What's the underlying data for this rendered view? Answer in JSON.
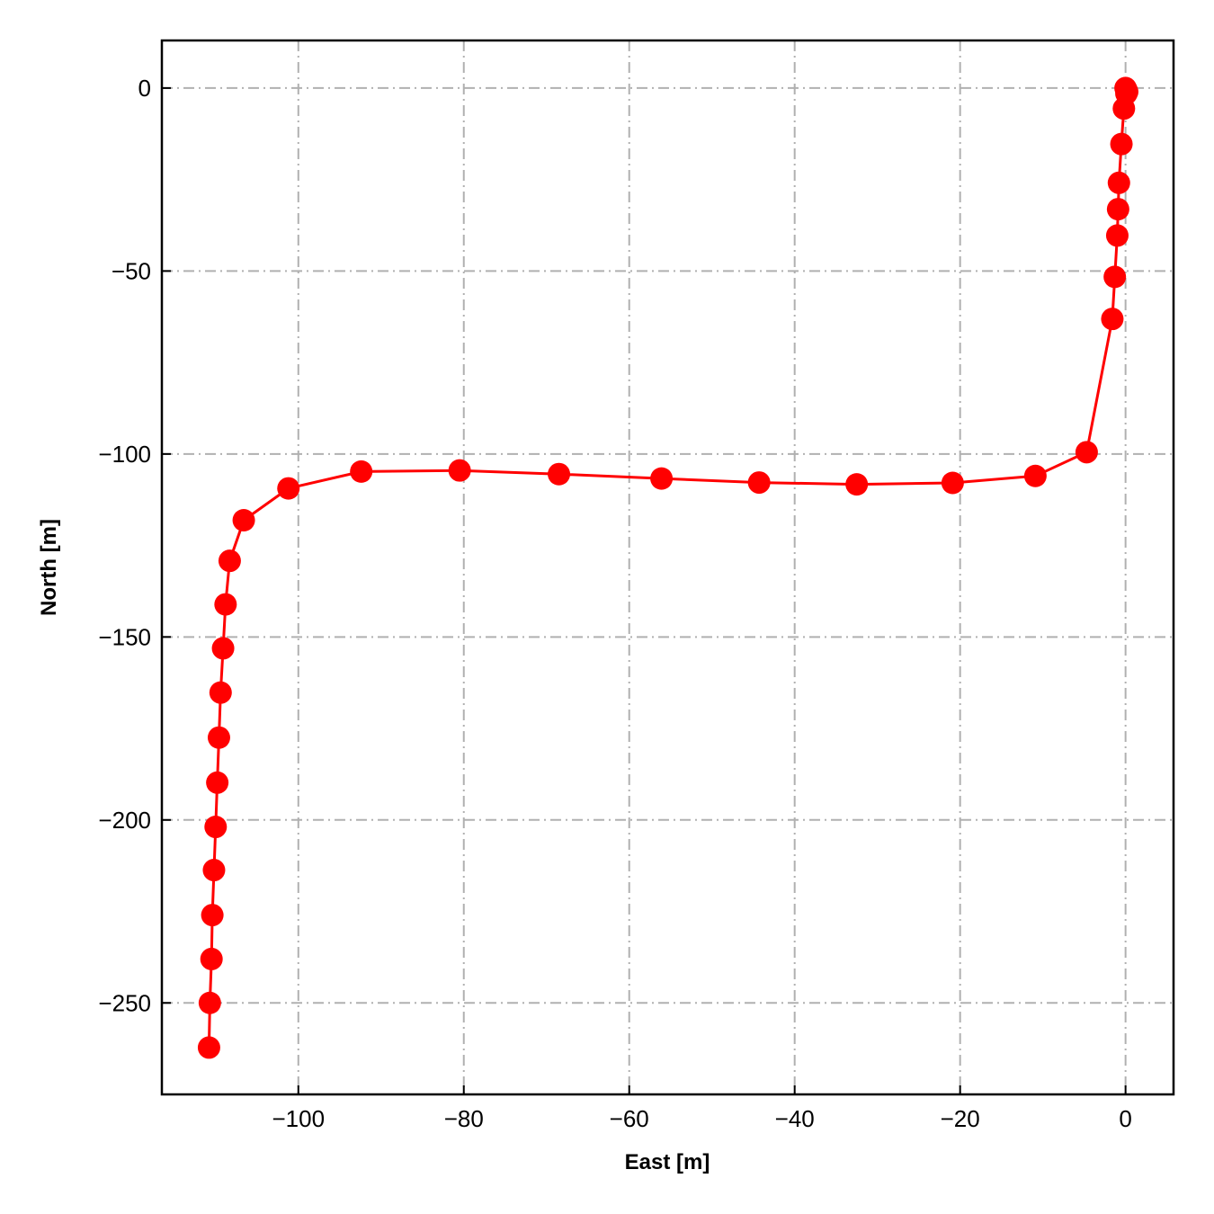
{
  "chart_data": {
    "type": "line",
    "title": "",
    "xlabel": "East [m]",
    "ylabel": "North [m]",
    "xlim": [
      -116.5,
      5.8
    ],
    "ylim": [
      -275,
      13
    ],
    "xticks": [
      -100,
      -80,
      -60,
      -40,
      -20,
      0
    ],
    "yticks": [
      0,
      -50,
      -100,
      -150,
      -200,
      -250
    ],
    "xtick_labels": [
      "−100",
      "−80",
      "−60",
      "−40",
      "−20",
      "0"
    ],
    "ytick_labels": [
      "0",
      "−50",
      "−100",
      "−150",
      "−200",
      "−250"
    ],
    "grid": true,
    "series": [
      {
        "color": "#ff0000",
        "marker": "circle",
        "points": [
          [
            0.0,
            0.0
          ],
          [
            0.1,
            -0.5
          ],
          [
            0.2,
            -1.0
          ],
          [
            0.1,
            -1.5
          ],
          [
            -0.2,
            -5.6
          ],
          [
            -0.5,
            -15.3
          ],
          [
            -0.8,
            -25.9
          ],
          [
            -0.9,
            -33.1
          ],
          [
            -1.0,
            -40.3
          ],
          [
            -1.3,
            -51.6
          ],
          [
            -1.6,
            -63.1
          ],
          [
            -4.7,
            -99.5
          ],
          [
            -10.9,
            -106.0
          ],
          [
            -20.9,
            -107.9
          ],
          [
            -32.5,
            -108.3
          ],
          [
            -44.3,
            -107.8
          ],
          [
            -56.1,
            -106.7
          ],
          [
            -68.5,
            -105.5
          ],
          [
            -80.5,
            -104.5
          ],
          [
            -92.4,
            -104.8
          ],
          [
            -101.2,
            -109.4
          ],
          [
            -106.6,
            -118.1
          ],
          [
            -108.3,
            -129.2
          ],
          [
            -108.8,
            -141.1
          ],
          [
            -109.1,
            -153.1
          ],
          [
            -109.4,
            -165.2
          ],
          [
            -109.6,
            -177.5
          ],
          [
            -109.8,
            -189.8
          ],
          [
            -110.0,
            -201.9
          ],
          [
            -110.2,
            -213.7
          ],
          [
            -110.4,
            -226.0
          ],
          [
            -110.5,
            -238.0
          ],
          [
            -110.7,
            -250.0
          ],
          [
            -110.8,
            -262.2
          ]
        ]
      }
    ]
  }
}
